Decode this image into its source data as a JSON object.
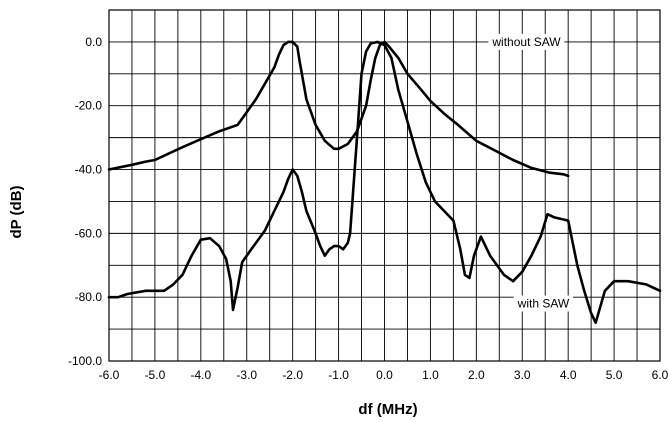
{
  "chart_data": {
    "type": "line",
    "xlabel": "df (MHz)",
    "ylabel": "dP (dB)",
    "xlim": [
      -6.0,
      6.0
    ],
    "ylim": [
      -100.0,
      10.0
    ],
    "x_ticks": [
      "-6.0",
      "-5.0",
      "-4.0",
      "-3.0",
      "-2.0",
      "-1.0",
      "0.0",
      "1.0",
      "2.0",
      "3.0",
      "4.0",
      "5.0",
      "6.0"
    ],
    "y_ticks": [
      "0.0",
      "-20.0",
      "-40.0",
      "-60.0",
      "-80.0",
      "-100.0"
    ],
    "x_tick_values": [
      -6,
      -5,
      -4,
      -3,
      -2,
      -1,
      0,
      1,
      2,
      3,
      4,
      5,
      6
    ],
    "y_tick_values": [
      0,
      -20,
      -40,
      -60,
      -80,
      -100
    ],
    "grid": true,
    "grid_x_step": 0.5,
    "grid_y_step": 10,
    "annotations": [
      {
        "text": "without SAW",
        "x": 2.35,
        "y": 0.0
      },
      {
        "text": "with SAW",
        "x": 2.9,
        "y": -82.0
      }
    ],
    "series": [
      {
        "x": [
          -6.0,
          -5.5,
          -5.2,
          -5.0,
          -4.7,
          -4.4,
          -4.0,
          -3.6,
          -3.4,
          -3.2,
          -3.0,
          -2.8,
          -2.6,
          -2.4,
          -2.3,
          -2.2,
          -2.1,
          -2.0,
          -1.9,
          -1.85,
          -1.7,
          -1.5,
          -1.3,
          -1.1,
          -1.0,
          -0.8,
          -0.6,
          -0.4,
          -0.3,
          -0.2,
          -0.1,
          0.0,
          0.1,
          0.3,
          0.5,
          0.8,
          1.0,
          1.3,
          1.6,
          2.0,
          2.4,
          2.8,
          3.2,
          3.6,
          3.9,
          4.0
        ],
        "y": [
          -40.0,
          -38.5,
          -37.5,
          -37.0,
          -35.0,
          -33.0,
          -30.5,
          -28.0,
          -27.0,
          -26.0,
          -22.0,
          -18.0,
          -13.0,
          -8.0,
          -4.0,
          -1.0,
          0.0,
          0.0,
          -1.5,
          -6.0,
          -18.0,
          -26.0,
          -31.0,
          -33.5,
          -33.5,
          -32.0,
          -28.0,
          -20.0,
          -12.0,
          -5.0,
          -1.0,
          0.0,
          -1.5,
          -5.0,
          -10.0,
          -15.0,
          -18.5,
          -22.5,
          -26.0,
          -31.0,
          -34.0,
          -37.0,
          -39.5,
          -41.0,
          -41.5,
          -42.0
        ]
      },
      {
        "x": [
          -6.0,
          -5.8,
          -5.6,
          -5.2,
          -4.8,
          -4.6,
          -4.4,
          -4.2,
          -4.0,
          -3.8,
          -3.6,
          -3.45,
          -3.35,
          -3.3,
          -3.2,
          -3.1,
          -2.9,
          -2.6,
          -2.4,
          -2.2,
          -2.1,
          -2.0,
          -1.9,
          -1.8,
          -1.7,
          -1.5,
          -1.4,
          -1.3,
          -1.2,
          -1.1,
          -1.0,
          -0.9,
          -0.8,
          -0.75,
          -0.7,
          -0.6,
          -0.5,
          -0.4,
          -0.3,
          -0.15,
          0.0,
          0.15,
          0.3,
          0.5,
          0.7,
          0.9,
          1.1,
          1.3,
          1.5,
          1.65,
          1.75,
          1.85,
          1.95,
          2.1,
          2.3,
          2.6,
          2.8,
          3.0,
          3.2,
          3.4,
          3.55,
          3.7,
          3.85,
          4.0,
          4.2,
          4.35,
          4.5,
          4.6,
          4.8,
          5.0,
          5.3,
          5.7,
          6.0
        ],
        "y": [
          -80.0,
          -80.0,
          -79.0,
          -78.0,
          -78.0,
          -76.0,
          -73.0,
          -67.0,
          -62.0,
          -61.5,
          -64.0,
          -68.0,
          -75.0,
          -84.0,
          -77.0,
          -69.0,
          -65.0,
          -59.0,
          -53.0,
          -47.0,
          -43.0,
          -40.0,
          -42.0,
          -47.0,
          -53.0,
          -60.0,
          -64.0,
          -67.0,
          -65.0,
          -64.0,
          -64.0,
          -65.0,
          -63.0,
          -60.0,
          -50.0,
          -30.0,
          -10.0,
          -3.0,
          -0.5,
          0.0,
          -1.0,
          -5.0,
          -15.0,
          -25.0,
          -35.0,
          -44.0,
          -50.0,
          -53.0,
          -56.0,
          -65.0,
          -73.0,
          -74.0,
          -67.0,
          -61.0,
          -67.0,
          -73.0,
          -75.0,
          -72.0,
          -67.0,
          -61.0,
          -54.0,
          -55.0,
          -55.5,
          -56.0,
          -70.0,
          -78.0,
          -85.0,
          -88.0,
          -78.0,
          -75.0,
          -75.0,
          -76.0,
          -78.0
        ]
      }
    ]
  }
}
